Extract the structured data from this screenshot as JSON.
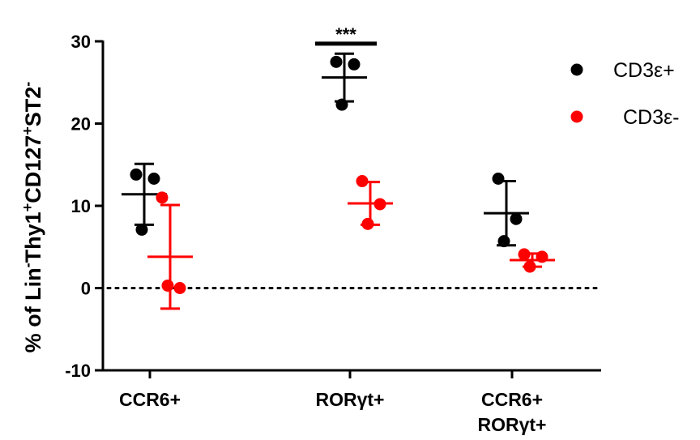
{
  "chart_data": {
    "type": "scatter",
    "title": "",
    "ylabel": {
      "parts": [
        {
          "t": "% of Lin"
        },
        {
          "t": "-",
          "sup": true
        },
        {
          "t": "Thy1"
        },
        {
          "t": "+",
          "sup": true
        },
        {
          "t": "CD127"
        },
        {
          "t": "+",
          "sup": true
        },
        {
          "t": "ST2"
        },
        {
          "t": "-",
          "sup": true
        }
      ]
    },
    "ylim": [
      -10,
      30
    ],
    "yticks": [
      -10,
      0,
      10,
      20,
      30
    ],
    "reference_line": {
      "y": 0,
      "style": "dotted"
    },
    "groups": [
      {
        "label_lines": [
          "CCR6+"
        ]
      },
      {
        "label_lines": [
          "RORγt+"
        ]
      },
      {
        "label_lines": [
          "CCR6+",
          "RORγt+"
        ]
      }
    ],
    "series": [
      {
        "name": "CD3ε+",
        "color": "#000000",
        "groups": [
          {
            "points": [
              13.8,
              13.3,
              7.1
            ],
            "mean": 11.4,
            "sd": 3.7
          },
          {
            "points": [
              27.5,
              27.2,
              22.3
            ],
            "mean": 25.6,
            "sd": 2.9
          },
          {
            "points": [
              13.3,
              8.4,
              5.7
            ],
            "mean": 9.1,
            "sd": 3.9
          }
        ]
      },
      {
        "name": "CD3ε-",
        "color": "#ff0000",
        "groups": [
          {
            "points": [
              11.0,
              0.0,
              0.3
            ],
            "mean": 3.8,
            "sd": 6.3
          },
          {
            "points": [
              13.0,
              10.2,
              7.8
            ],
            "mean": 10.3,
            "sd": 2.6
          },
          {
            "points": [
              4.1,
              3.8,
              2.6
            ],
            "mean": 3.4,
            "sd": 0.8
          }
        ]
      }
    ],
    "annotation": {
      "text": "***",
      "group": 1,
      "y": 30.9
    }
  }
}
